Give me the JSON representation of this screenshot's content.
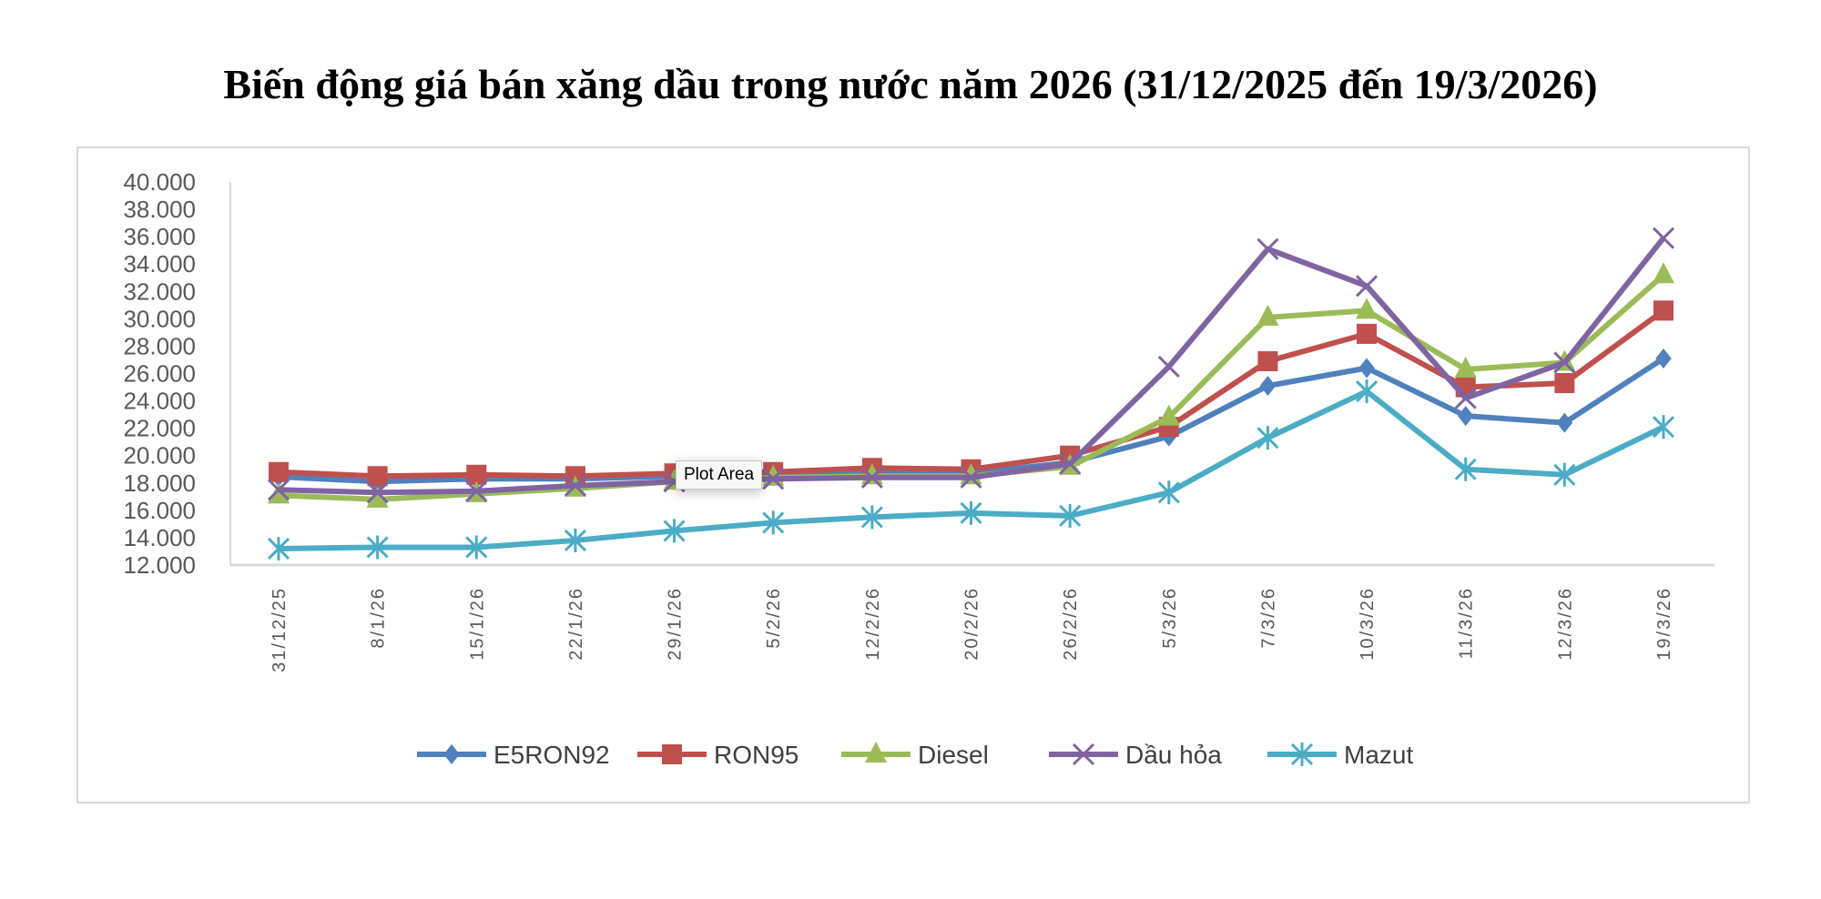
{
  "chart_data": {
    "type": "line",
    "title": "Biến động giá bán xăng dầu trong nước năm 2026 (31/12/2025 đến 19/3/2026)",
    "xlabel": "",
    "ylabel": "",
    "ylim": [
      12000,
      40000
    ],
    "yticks": [
      "12.000",
      "14.000",
      "16.000",
      "18.000",
      "20.000",
      "22.000",
      "24.000",
      "26.000",
      "28.000",
      "30.000",
      "32.000",
      "34.000",
      "36.000",
      "38.000",
      "40.000"
    ],
    "categories": [
      "31/12/25",
      "8/1/26",
      "15/1/26",
      "22/1/26",
      "29/1/26",
      "5/2/26",
      "12/2/26",
      "20/2/26",
      "26/2/26",
      "5/3/26",
      "7/3/26",
      "10/3/26",
      "11/3/26",
      "12/3/26",
      "19/3/26"
    ],
    "grid": false,
    "legend_position": "bottom",
    "series": [
      {
        "name": "E5RON92",
        "color": "#4f81bd",
        "marker": "diamond",
        "values": [
          18450,
          18100,
          18300,
          18300,
          18500,
          18500,
          18700,
          18700,
          19500,
          21400,
          25100,
          26400,
          22900,
          22400,
          27100
        ]
      },
      {
        "name": "RON95",
        "color": "#c0504d",
        "marker": "square",
        "values": [
          18800,
          18500,
          18600,
          18500,
          18700,
          18800,
          19100,
          19000,
          20000,
          22100,
          26900,
          28900,
          25000,
          25300,
          30600
        ]
      },
      {
        "name": "Diesel",
        "color": "#9bbb59",
        "marker": "triangle",
        "values": [
          17100,
          16800,
          17200,
          17600,
          18100,
          18400,
          18500,
          18500,
          19200,
          22800,
          30100,
          30600,
          26300,
          26800,
          33200
        ]
      },
      {
        "name": "Dầu hỏa",
        "color": "#8064a2",
        "marker": "x",
        "values": [
          17500,
          17300,
          17400,
          17800,
          18100,
          18300,
          18400,
          18400,
          19400,
          26500,
          35100,
          32400,
          24200,
          26800,
          35900
        ]
      },
      {
        "name": "Mazut",
        "color": "#4bacc6",
        "marker": "star",
        "values": [
          13200,
          13300,
          13300,
          13800,
          14500,
          15100,
          15500,
          15800,
          15600,
          17300,
          21300,
          24700,
          19000,
          18600,
          22100
        ]
      }
    ]
  },
  "tooltip": "Plot Area"
}
